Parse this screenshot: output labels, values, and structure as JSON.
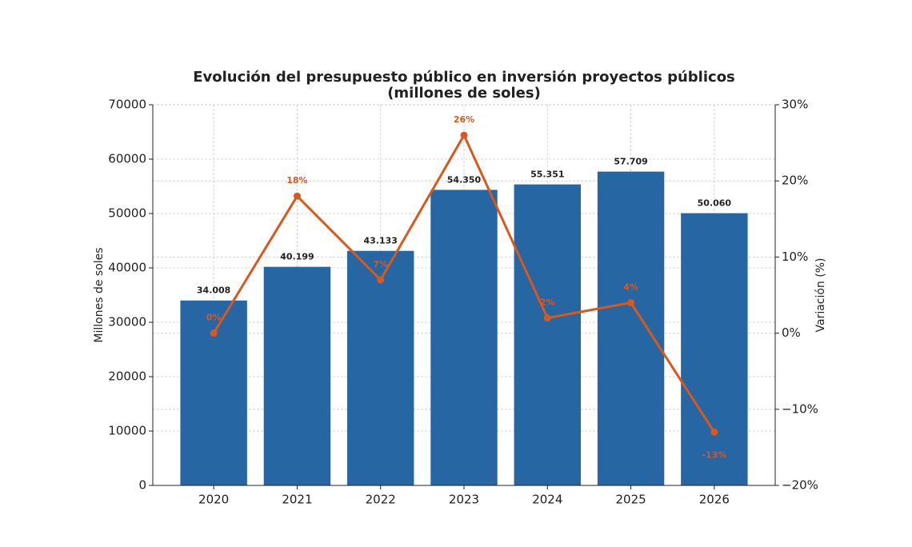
{
  "chart_data": {
    "type": "bar-line",
    "title": [
      "Evolución del presupuesto público en inversión proyectos públicos",
      "(millones de soles)"
    ],
    "categories": [
      "2020",
      "2021",
      "2022",
      "2023",
      "2024",
      "2025",
      "2026"
    ],
    "series": [
      {
        "name": "Millones de soles",
        "type": "bar",
        "color": "#2566a3",
        "values": [
          34008,
          40199,
          43133,
          54350,
          55351,
          57709,
          50060
        ],
        "value_labels": [
          "34.008",
          "40.199",
          "43.133",
          "54.350",
          "55.351",
          "57.709",
          "50.060"
        ]
      },
      {
        "name": "Variación (%)",
        "type": "line",
        "axis": "y2",
        "color": "#d9581e",
        "values": [
          0,
          18,
          7,
          26,
          2,
          4,
          -13
        ],
        "value_labels": [
          "0%",
          "18%",
          "7%",
          "26%",
          "2%",
          "4%",
          "-13%"
        ]
      }
    ],
    "ylabel": "Millones de soles",
    "y2label": "Variación (%)",
    "ylim": [
      0,
      70000
    ],
    "yticks": [
      0,
      10000,
      20000,
      30000,
      40000,
      50000,
      60000,
      70000
    ],
    "y2lim": [
      -20,
      30
    ],
    "y2ticks": [
      {
        "value": -20,
        "label": "−20%"
      },
      {
        "value": -10,
        "label": "−10%"
      },
      {
        "value": 0,
        "label": "0%"
      },
      {
        "value": 10,
        "label": "10%"
      },
      {
        "value": 20,
        "label": "20%"
      },
      {
        "value": 30,
        "label": "30%"
      }
    ],
    "grid": true
  }
}
